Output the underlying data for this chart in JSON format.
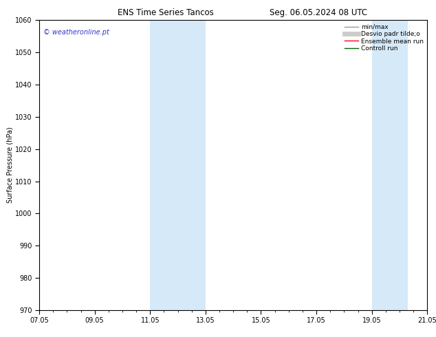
{
  "title_left": "ENS Time Series Tancos",
  "title_right": "Seg. 06.05.2024 08 UTC",
  "ylabel": "Surface Pressure (hPa)",
  "ylim": [
    970,
    1060
  ],
  "yticks": [
    970,
    980,
    990,
    1000,
    1010,
    1020,
    1030,
    1040,
    1050,
    1060
  ],
  "xticks_labels": [
    "07.05",
    "09.05",
    "11.05",
    "13.05",
    "15.05",
    "17.05",
    "19.05",
    "21.05"
  ],
  "xticks_values": [
    0,
    2,
    4,
    6,
    8,
    10,
    12,
    14
  ],
  "xlim": [
    0,
    14
  ],
  "shaded_regions": [
    {
      "x_start": 4,
      "x_end": 6
    },
    {
      "x_start": 12,
      "x_end": 13.3
    }
  ],
  "shaded_color": "#d6e9f8",
  "watermark_text": "© weatheronline.pt",
  "watermark_color": "#3333cc",
  "background_color": "#ffffff",
  "title_fontsize": 8.5,
  "tick_fontsize": 7,
  "ylabel_fontsize": 7,
  "legend_fontsize": 6.5,
  "watermark_fontsize": 7
}
